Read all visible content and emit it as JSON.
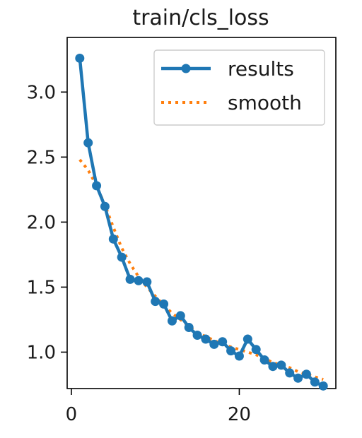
{
  "chart_data": {
    "type": "line",
    "title": "train/cls_loss",
    "xlabel": "",
    "ylabel": "",
    "xlim": [
      -0.5,
      31.5
    ],
    "ylim": [
      0.72,
      3.42
    ],
    "x_ticks": [
      0,
      20
    ],
    "x_tick_labels": [
      "0",
      "20"
    ],
    "y_ticks": [
      1.0,
      1.5,
      2.0,
      2.5,
      3.0
    ],
    "y_tick_labels": [
      "1.0",
      "1.5",
      "2.0",
      "2.5",
      "3.0"
    ],
    "grid": false,
    "legend_position": "top-right",
    "series": [
      {
        "name": "results",
        "style": "solid-line-with-markers",
        "color": "#1f77b4",
        "x": [
          1,
          2,
          3,
          4,
          5,
          6,
          7,
          8,
          9,
          10,
          11,
          12,
          13,
          14,
          15,
          16,
          17,
          18,
          19,
          20,
          21,
          22,
          23,
          24,
          25,
          26,
          27,
          28,
          29,
          30
        ],
        "y": [
          3.26,
          2.61,
          2.28,
          2.12,
          1.87,
          1.73,
          1.56,
          1.55,
          1.54,
          1.39,
          1.37,
          1.24,
          1.28,
          1.19,
          1.13,
          1.1,
          1.06,
          1.08,
          1.01,
          0.97,
          1.1,
          1.02,
          0.94,
          0.89,
          0.9,
          0.84,
          0.8,
          0.83,
          0.77,
          0.74
        ]
      },
      {
        "name": "smooth",
        "style": "dotted-line",
        "color": "#ff7f0e",
        "x": [
          1,
          2,
          3,
          4,
          5,
          6,
          7,
          8,
          9,
          10,
          11,
          12,
          13,
          14,
          15,
          16,
          17,
          18,
          19,
          20,
          21,
          22,
          23,
          24,
          25,
          26,
          27,
          28,
          29,
          30
        ],
        "y": [
          2.48,
          2.4,
          2.28,
          2.13,
          1.96,
          1.8,
          1.68,
          1.58,
          1.5,
          1.43,
          1.36,
          1.3,
          1.25,
          1.2,
          1.15,
          1.12,
          1.09,
          1.06,
          1.04,
          1.02,
          1.0,
          0.98,
          0.95,
          0.92,
          0.9,
          0.88,
          0.85,
          0.83,
          0.81,
          0.79
        ]
      }
    ]
  }
}
